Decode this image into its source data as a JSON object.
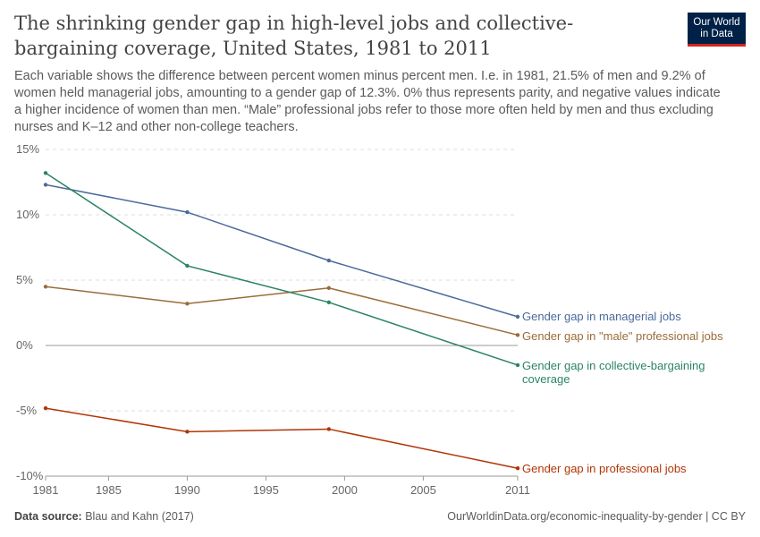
{
  "title": "The shrinking gender gap in high-level jobs and collective-bargaining coverage, United States, 1981 to 2011",
  "subtitle": "Each variable shows the difference between percent women minus percent men. I.e. in 1981, 21.5% of men and 9.2% of women held managerial jobs, amounting to a gender gap of 12.3%. 0% thus represents parity, and negative values indicate a higher incidence of women than men. “Male” professional jobs refer to those more often held by men and thus excluding nurses and K–12 and other non-college teachers.",
  "logo": {
    "line1": "Our World",
    "line2": "in Data"
  },
  "footer": {
    "source_label": "Data source:",
    "source": "Blau and Kahn (2017)",
    "url": "OurWorldinData.org/economic-inequality-by-gender | CC BY"
  },
  "chart_data": {
    "type": "line",
    "x": [
      1981,
      1990,
      1999,
      2011
    ],
    "xlim": [
      1981,
      2011
    ],
    "ylim": [
      -10,
      15
    ],
    "x_ticks": [
      1981,
      1985,
      1990,
      1995,
      2000,
      2005,
      2011
    ],
    "y_ticks": [
      -10,
      -5,
      0,
      5,
      10,
      15
    ],
    "y_tick_labels": [
      "-10%",
      "-5%",
      "0%",
      "5%",
      "10%",
      "15%"
    ],
    "grid": "horizontal dashed",
    "legend": "line-end labels",
    "series": [
      {
        "name": "Gender gap in managerial jobs",
        "color": "#4c6a9c",
        "values": [
          12.3,
          10.2,
          6.5,
          2.2
        ]
      },
      {
        "name": "Gender gap in \"male\" professional jobs",
        "color": "#996d39",
        "values": [
          4.5,
          3.2,
          4.4,
          0.8
        ]
      },
      {
        "name": "Gender gap in collective-bargaining coverage",
        "color": "#2c8465",
        "values": [
          13.2,
          6.1,
          3.3,
          -1.5
        ]
      },
      {
        "name": "Gender gap in professional jobs",
        "color": "#b13507",
        "values": [
          -4.8,
          -6.6,
          -6.4,
          -9.4
        ]
      }
    ]
  }
}
